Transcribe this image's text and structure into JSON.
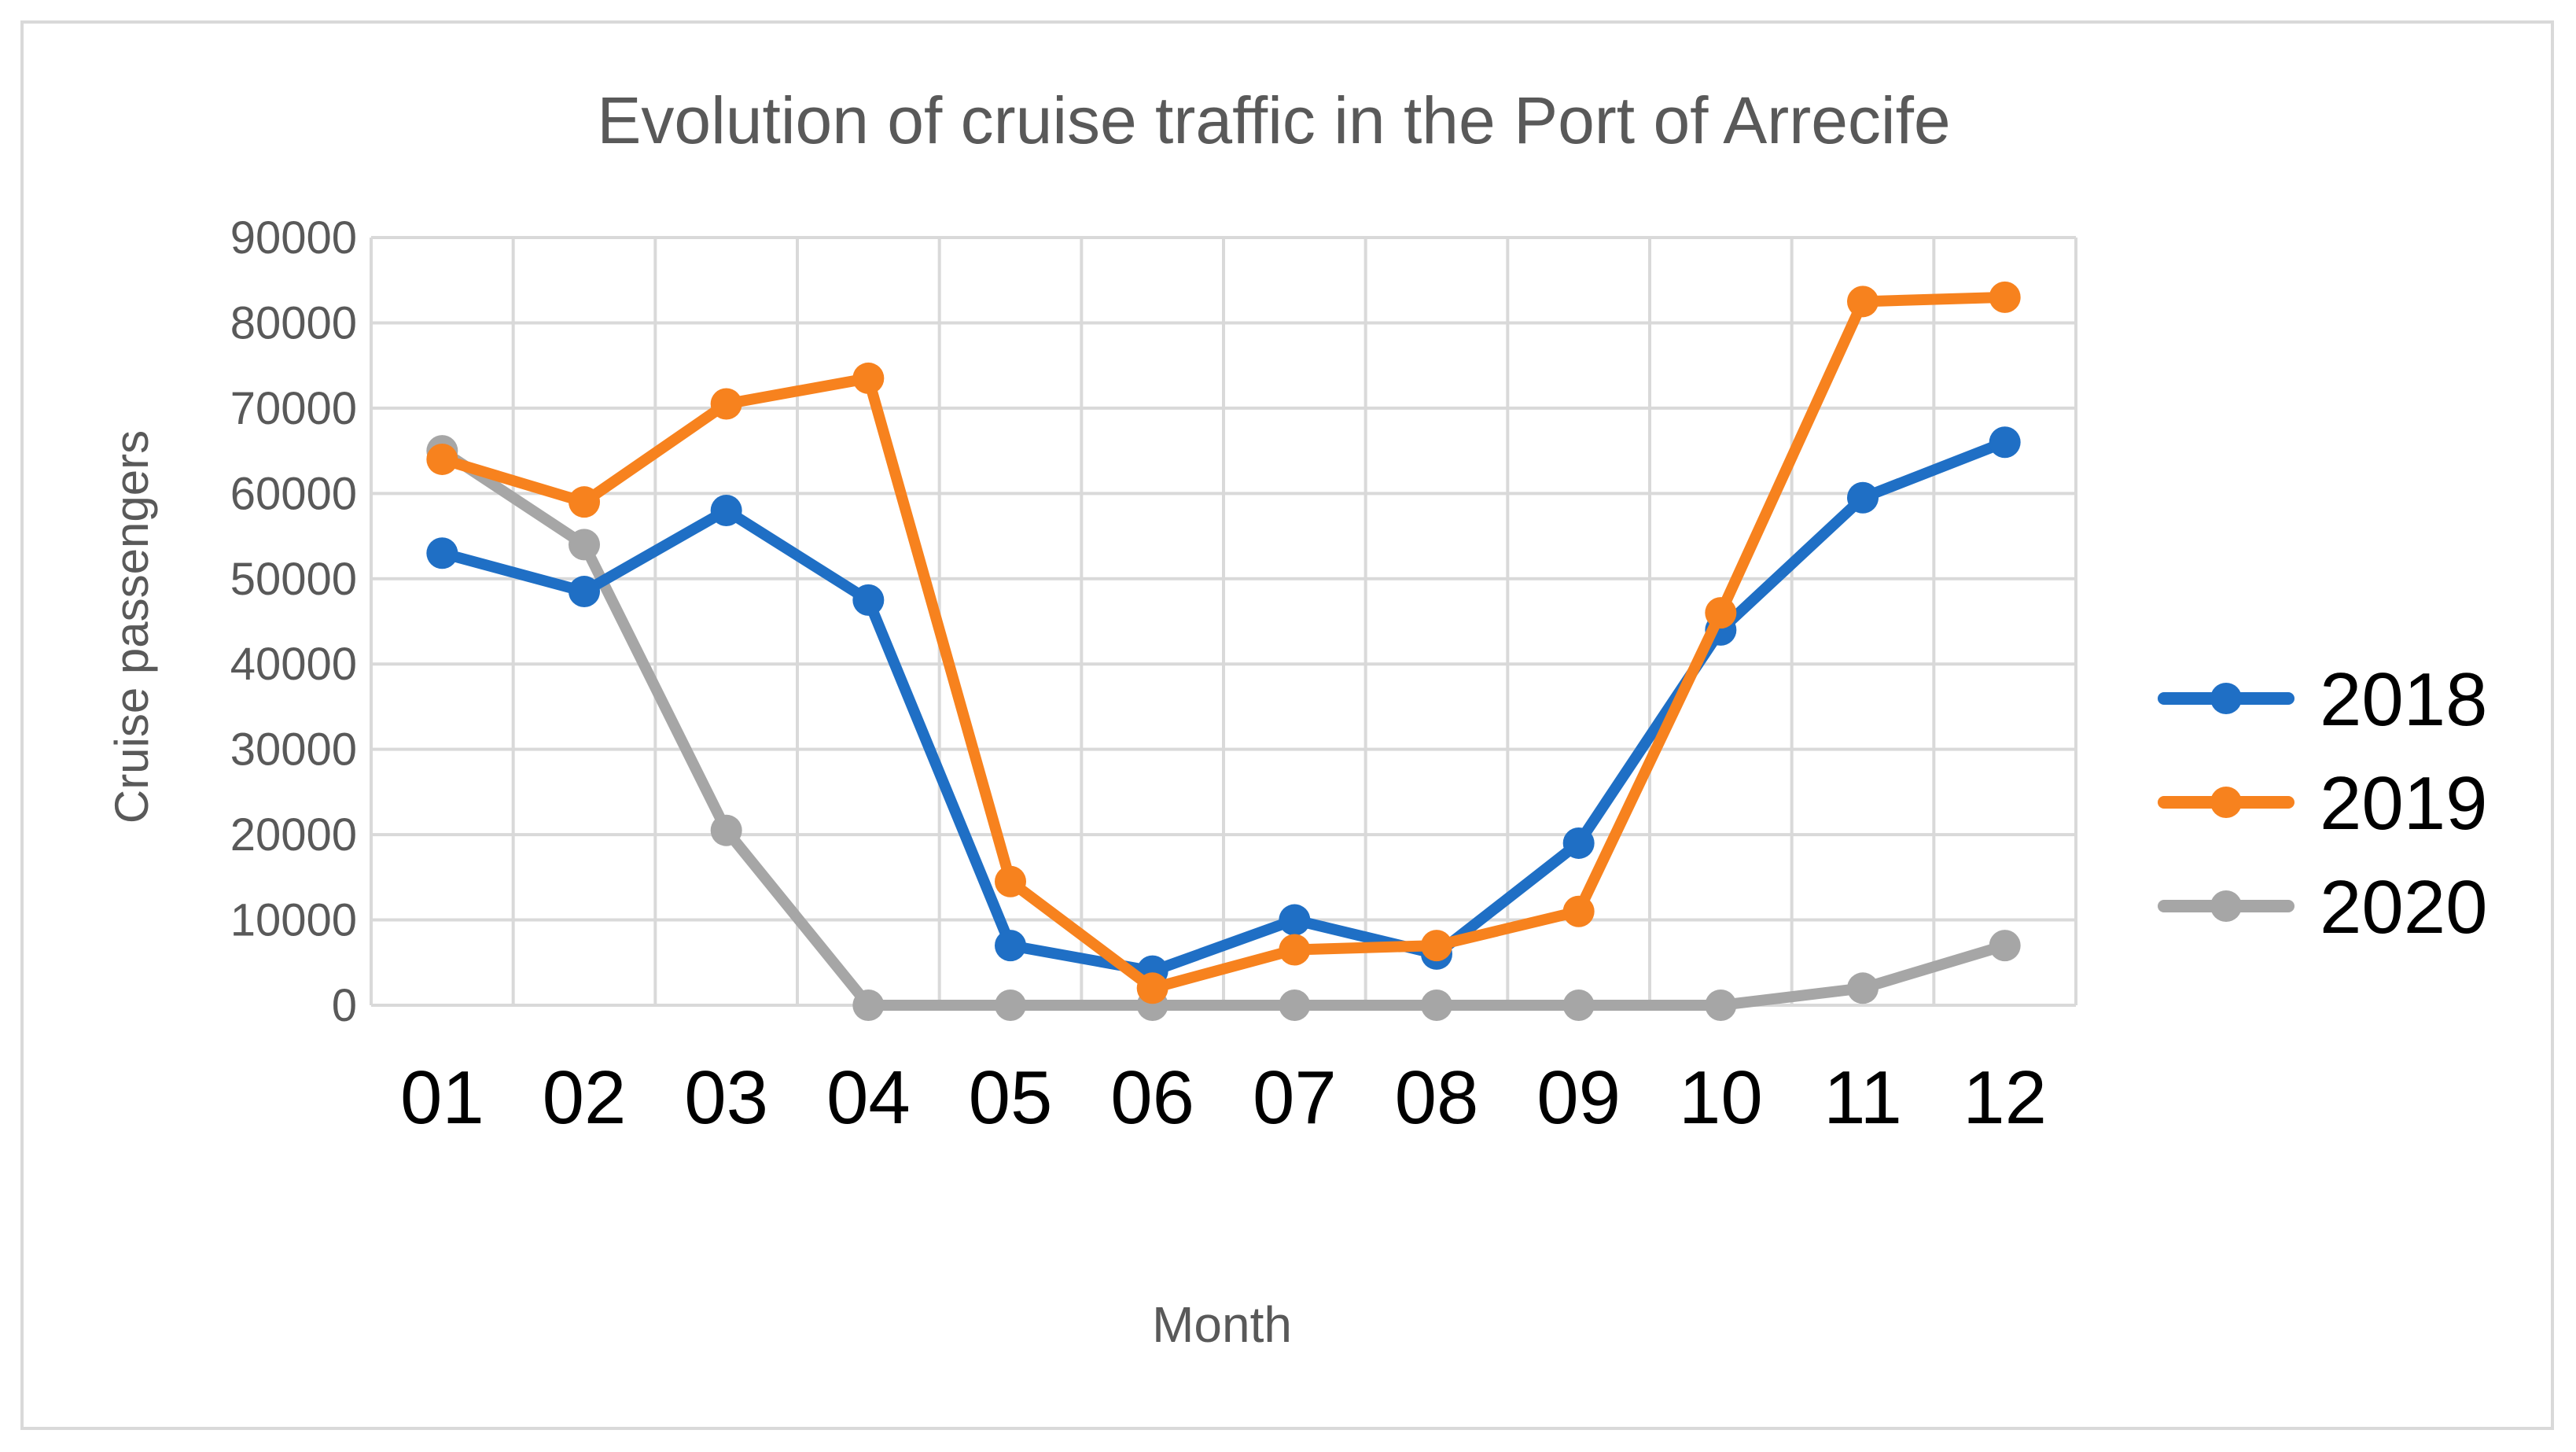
{
  "chart_data": {
    "type": "line",
    "title": "Evolution of cruise traffic in the Port of Arrecife",
    "xlabel": "Month",
    "ylabel": "Cruise passengers",
    "categories": [
      "01",
      "02",
      "03",
      "04",
      "05",
      "06",
      "07",
      "08",
      "09",
      "10",
      "11",
      "12"
    ],
    "ylim": [
      0,
      90000
    ],
    "yticks": [
      0,
      10000,
      20000,
      30000,
      40000,
      50000,
      60000,
      70000,
      80000,
      90000
    ],
    "ytick_labels": [
      "0",
      "10000",
      "20000",
      "30000",
      "40000",
      "50000",
      "60000",
      "70000",
      "80000",
      "90000"
    ],
    "grid": true,
    "legend_position": "right",
    "series": [
      {
        "name": "2018",
        "color": "#1f6fc5",
        "values": [
          53000,
          48500,
          58000,
          47500,
          7000,
          4000,
          10000,
          6000,
          19000,
          44000,
          59500,
          66000
        ]
      },
      {
        "name": "2019",
        "color": "#f7821e",
        "values": [
          64000,
          59000,
          70500,
          73500,
          14500,
          2000,
          6500,
          7000,
          11000,
          46000,
          82500,
          83000
        ]
      },
      {
        "name": "2020",
        "color": "#a6a6a6",
        "values": [
          65000,
          54000,
          20500,
          0,
          0,
          0,
          0,
          0,
          0,
          0,
          2000,
          7000
        ]
      }
    ]
  }
}
